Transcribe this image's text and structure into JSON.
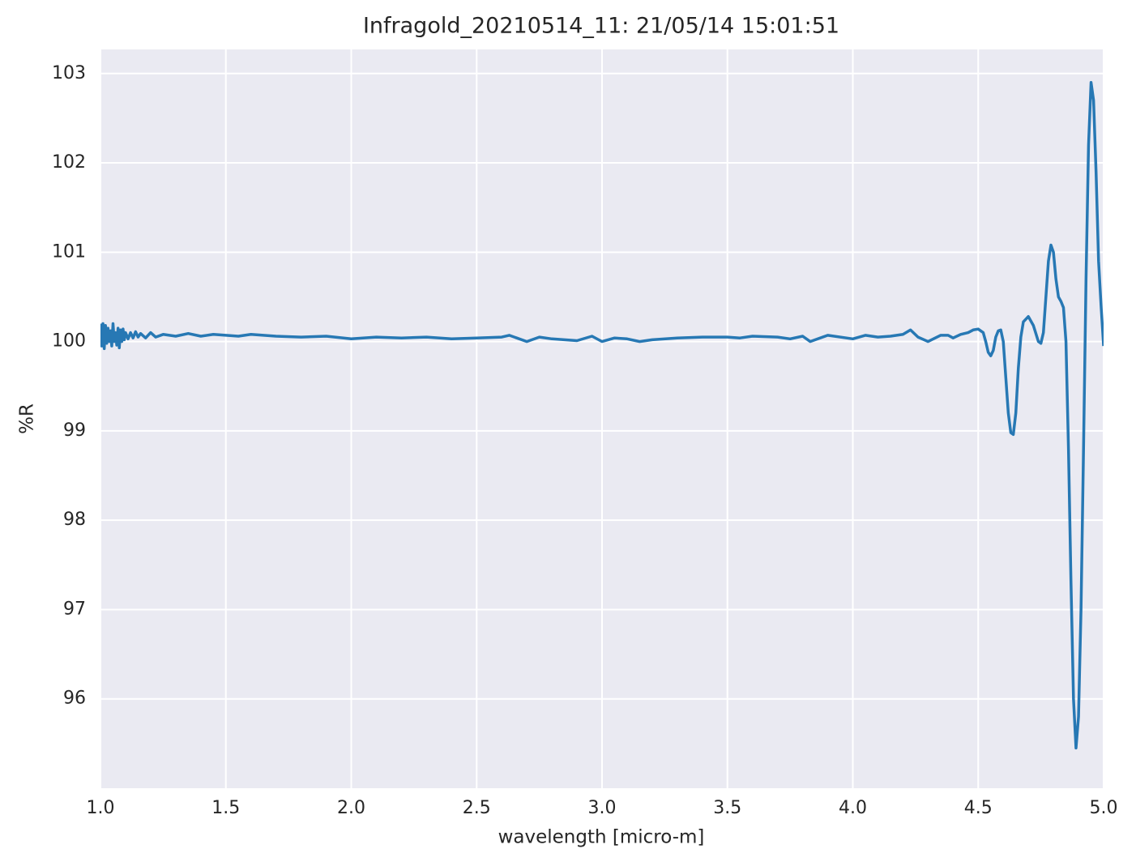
{
  "chart_data": {
    "type": "line",
    "title": "Infragold_20210514_11:  21/05/14 15:01:51",
    "x_label": "wavelength [micro-m]",
    "y_label": "%R",
    "x": [
      1.0,
      1.005,
      1.01,
      1.015,
      1.02,
      1.025,
      1.03,
      1.035,
      1.04,
      1.045,
      1.05,
      1.055,
      1.06,
      1.065,
      1.07,
      1.075,
      1.08,
      1.085,
      1.09,
      1.095,
      1.1,
      1.11,
      1.12,
      1.13,
      1.14,
      1.15,
      1.16,
      1.18,
      1.2,
      1.22,
      1.25,
      1.3,
      1.35,
      1.4,
      1.45,
      1.5,
      1.55,
      1.6,
      1.7,
      1.8,
      1.9,
      2.0,
      2.1,
      2.2,
      2.3,
      2.4,
      2.5,
      2.6,
      2.63,
      2.66,
      2.7,
      2.75,
      2.8,
      2.9,
      2.96,
      3.0,
      3.05,
      3.1,
      3.15,
      3.2,
      3.3,
      3.4,
      3.5,
      3.55,
      3.6,
      3.7,
      3.75,
      3.8,
      3.83,
      3.9,
      4.0,
      4.05,
      4.1,
      4.15,
      4.2,
      4.23,
      4.26,
      4.3,
      4.35,
      4.38,
      4.4,
      4.43,
      4.46,
      4.48,
      4.5,
      4.52,
      4.53,
      4.54,
      4.55,
      4.56,
      4.57,
      4.58,
      4.59,
      4.6,
      4.61,
      4.62,
      4.63,
      4.64,
      4.65,
      4.66,
      4.67,
      4.68,
      4.7,
      4.72,
      4.74,
      4.75,
      4.76,
      4.77,
      4.78,
      4.79,
      4.8,
      4.81,
      4.82,
      4.83,
      4.84,
      4.85,
      4.86,
      4.87,
      4.88,
      4.89,
      4.9,
      4.91,
      4.92,
      4.93,
      4.94,
      4.95,
      4.96,
      4.97,
      4.98,
      4.99,
      5.0
    ],
    "series": [
      {
        "color": "#2778b4",
        "values": [
          100.2,
          99.95,
          100.2,
          99.92,
          100.18,
          99.98,
          100.15,
          100.0,
          100.12,
          99.95,
          100.2,
          100.0,
          100.1,
          99.96,
          100.15,
          99.93,
          100.13,
          100.0,
          100.14,
          100.02,
          100.1,
          100.03,
          100.1,
          100.04,
          100.11,
          100.05,
          100.09,
          100.04,
          100.1,
          100.05,
          100.08,
          100.06,
          100.09,
          100.06,
          100.08,
          100.07,
          100.06,
          100.08,
          100.06,
          100.05,
          100.06,
          100.03,
          100.05,
          100.04,
          100.05,
          100.03,
          100.04,
          100.05,
          100.07,
          100.04,
          100.0,
          100.05,
          100.03,
          100.01,
          100.06,
          100.0,
          100.04,
          100.03,
          100.0,
          100.02,
          100.04,
          100.05,
          100.05,
          100.04,
          100.06,
          100.05,
          100.03,
          100.06,
          100.0,
          100.07,
          100.03,
          100.07,
          100.05,
          100.06,
          100.08,
          100.13,
          100.05,
          100.0,
          100.07,
          100.07,
          100.04,
          100.08,
          100.1,
          100.13,
          100.14,
          100.1,
          100.0,
          99.88,
          99.84,
          99.9,
          100.05,
          100.12,
          100.13,
          100.0,
          99.6,
          99.2,
          98.98,
          98.96,
          99.2,
          99.7,
          100.05,
          100.22,
          100.28,
          100.18,
          100.0,
          99.98,
          100.1,
          100.5,
          100.9,
          101.08,
          101.0,
          100.7,
          100.5,
          100.45,
          100.38,
          100.0,
          98.8,
          97.3,
          96.0,
          95.45,
          95.8,
          97.0,
          98.8,
          100.7,
          102.2,
          102.9,
          102.7,
          101.9,
          100.9,
          100.4,
          99.95
        ]
      }
    ],
    "xlim": [
      1.0,
      5.0
    ],
    "ylim": [
      95.0,
      103.27
    ],
    "xticks": [
      {
        "value": 1.0,
        "label": "1.0"
      },
      1.5,
      {
        "value": 2.0,
        "label": "2.0"
      },
      2.5,
      {
        "value": 3.0,
        "label": "3.0"
      },
      3.5,
      {
        "value": 4.0,
        "label": "4.0"
      },
      4.5,
      {
        "value": 5.0,
        "label": "5.0"
      }
    ],
    "yticks": [
      96,
      97,
      98,
      99,
      100,
      101,
      102,
      103
    ],
    "grid": true,
    "background": "#eaeaf2"
  }
}
